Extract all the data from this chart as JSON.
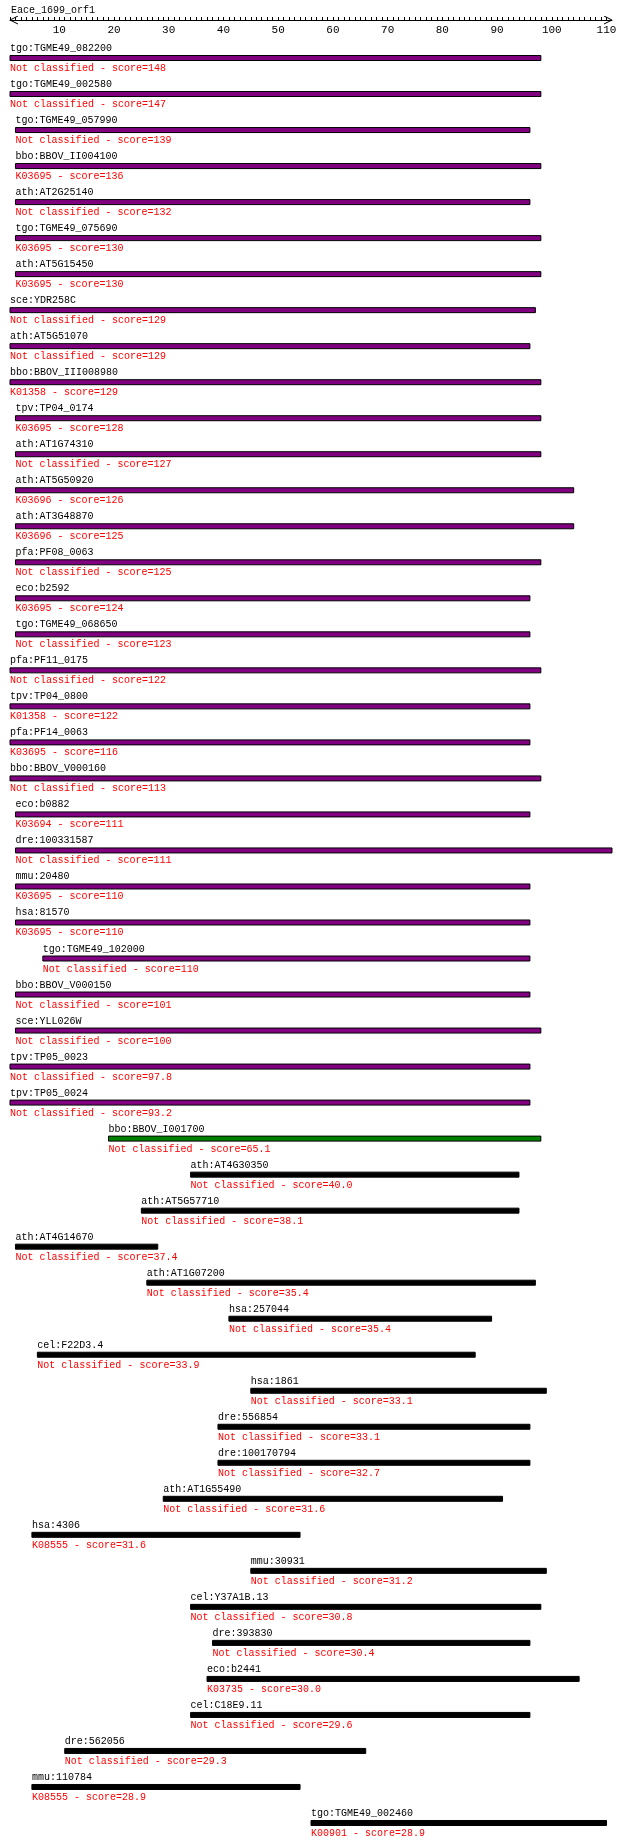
{
  "chart_data": {
    "type": "bar",
    "orientation": "horizontal",
    "title": "Eace_1699_orf1",
    "categories": [
      "tgo:TGME49_082200",
      "tgo:TGME49_002580",
      "tgo:TGME49_057990",
      "bbo:BBOV_II004100",
      "ath:AT2G25140",
      "tgo:TGME49_075690",
      "ath:AT5G15450",
      "sce:YDR258C",
      "ath:AT5G51070",
      "bbo:BBOV_III008980",
      "tpv:TP04_0174",
      "ath:AT1G74310",
      "ath:AT5G50920",
      "ath:AT3G48870",
      "pfa:PF08_0063",
      "eco:b2592",
      "tgo:TGME49_068650",
      "pfa:PF11_0175",
      "tpv:TP04_0800",
      "pfa:PF14_0063",
      "bbo:BBOV_V000160",
      "eco:b0882",
      "dre:100331587",
      "mmu:20480",
      "hsa:81570",
      "tgo:TGME49_102000",
      "bbo:BBOV_V000150",
      "sce:YLL026W",
      "tpv:TP05_0023",
      "tpv:TP05_0024",
      "bbo:BBOV_I001700",
      "ath:AT4G30350",
      "ath:AT5G57710",
      "ath:AT4G14670",
      "ath:AT1G07200",
      "hsa:257044",
      "cel:F22D3.4",
      "hsa:1861",
      "dre:556854",
      "dre:100170794",
      "ath:AT1G55490",
      "hsa:4306",
      "mmu:30931",
      "cel:Y37A1B.13",
      "dre:393830",
      "eco:b2441",
      "cel:C18E9.11",
      "dre:562056",
      "mmu:110784",
      "tgo:TGME49_002460"
    ],
    "base": [
      1,
      1,
      2,
      2,
      2,
      2,
      2,
      1,
      1,
      1,
      2,
      2,
      2,
      2,
      2,
      2,
      2,
      1,
      1,
      1,
      1,
      2,
      2,
      2,
      2,
      7,
      2,
      2,
      1,
      1,
      19,
      34,
      25,
      2,
      26,
      41,
      6,
      45,
      39,
      39,
      29,
      5,
      45,
      34,
      38,
      37,
      34,
      11,
      5,
      56
    ],
    "values": [
      97,
      97,
      94,
      96,
      94,
      96,
      96,
      96,
      95,
      97,
      96,
      96,
      102,
      102,
      96,
      94,
      94,
      97,
      95,
      95,
      97,
      94,
      109,
      94,
      94,
      89,
      94,
      96,
      95,
      95,
      79,
      60,
      69,
      26,
      71,
      48,
      80,
      54,
      57,
      57,
      62,
      49,
      54,
      64,
      58,
      68,
      62,
      55,
      49,
      54
    ],
    "colors": [
      "#800080",
      "#800080",
      "#800080",
      "#800080",
      "#800080",
      "#800080",
      "#800080",
      "#800080",
      "#800080",
      "#800080",
      "#800080",
      "#800080",
      "#800080",
      "#800080",
      "#800080",
      "#800080",
      "#800080",
      "#800080",
      "#800080",
      "#800080",
      "#800080",
      "#800080",
      "#800080",
      "#800080",
      "#800080",
      "#800080",
      "#800080",
      "#800080",
      "#800080",
      "#800080",
      "#008000",
      "#000000",
      "#000000",
      "#000000",
      "#000000",
      "#000000",
      "#000000",
      "#000000",
      "#000000",
      "#000000",
      "#000000",
      "#000000",
      "#000000",
      "#000000",
      "#000000",
      "#000000",
      "#000000",
      "#000000",
      "#000000",
      "#000000"
    ],
    "xlim": [
      1,
      111
    ],
    "xticks": [
      {
        "value": 1,
        "label": null
      },
      {
        "value": 2,
        "label": null
      },
      {
        "value": 3,
        "label": null
      },
      {
        "value": 4,
        "label": null
      },
      {
        "value": 5,
        "label": null
      },
      {
        "value": 6,
        "label": null
      },
      {
        "value": 7,
        "label": null
      },
      {
        "value": 8,
        "label": null
      },
      {
        "value": 9,
        "label": null
      },
      10,
      {
        "value": 11,
        "label": null
      },
      {
        "value": 12,
        "label": null
      },
      {
        "value": 13,
        "label": null
      },
      {
        "value": 14,
        "label": null
      },
      {
        "value": 15,
        "label": null
      },
      {
        "value": 16,
        "label": null
      },
      {
        "value": 17,
        "label": null
      },
      {
        "value": 18,
        "label": null
      },
      {
        "value": 19,
        "label": null
      },
      20,
      {
        "value": 21,
        "label": null
      },
      {
        "value": 22,
        "label": null
      },
      {
        "value": 23,
        "label": null
      },
      {
        "value": 24,
        "label": null
      },
      {
        "value": 25,
        "label": null
      },
      {
        "value": 26,
        "label": null
      },
      {
        "value": 27,
        "label": null
      },
      {
        "value": 28,
        "label": null
      },
      {
        "value": 29,
        "label": null
      },
      30,
      {
        "value": 31,
        "label": null
      },
      {
        "value": 32,
        "label": null
      },
      {
        "value": 33,
        "label": null
      },
      {
        "value": 34,
        "label": null
      },
      {
        "value": 35,
        "label": null
      },
      {
        "value": 36,
        "label": null
      },
      {
        "value": 37,
        "label": null
      },
      {
        "value": 38,
        "label": null
      },
      {
        "value": 39,
        "label": null
      },
      40,
      {
        "value": 41,
        "label": null
      },
      {
        "value": 42,
        "label": null
      },
      {
        "value": 43,
        "label": null
      },
      {
        "value": 44,
        "label": null
      },
      {
        "value": 45,
        "label": null
      },
      {
        "value": 46,
        "label": null
      },
      {
        "value": 47,
        "label": null
      },
      {
        "value": 48,
        "label": null
      },
      {
        "value": 49,
        "label": null
      },
      50,
      {
        "value": 51,
        "label": null
      },
      {
        "value": 52,
        "label": null
      },
      {
        "value": 53,
        "label": null
      },
      {
        "value": 54,
        "label": null
      },
      {
        "value": 55,
        "label": null
      },
      {
        "value": 56,
        "label": null
      },
      {
        "value": 57,
        "label": null
      },
      {
        "value": 58,
        "label": null
      },
      {
        "value": 59,
        "label": null
      },
      60,
      {
        "value": 61,
        "label": null
      },
      {
        "value": 62,
        "label": null
      },
      {
        "value": 63,
        "label": null
      },
      {
        "value": 64,
        "label": null
      },
      {
        "value": 65,
        "label": null
      },
      {
        "value": 66,
        "label": null
      },
      {
        "value": 67,
        "label": null
      },
      {
        "value": 68,
        "label": null
      },
      {
        "value": 69,
        "label": null
      },
      70,
      {
        "value": 71,
        "label": null
      },
      {
        "value": 72,
        "label": null
      },
      {
        "value": 73,
        "label": null
      },
      {
        "value": 74,
        "label": null
      },
      {
        "value": 75,
        "label": null
      },
      {
        "value": 76,
        "label": null
      },
      {
        "value": 77,
        "label": null
      },
      {
        "value": 78,
        "label": null
      },
      {
        "value": 79,
        "label": null
      },
      80,
      {
        "value": 81,
        "label": null
      },
      {
        "value": 82,
        "label": null
      },
      {
        "value": 83,
        "label": null
      },
      {
        "value": 84,
        "label": null
      },
      {
        "value": 85,
        "label": null
      },
      {
        "value": 86,
        "label": null
      },
      {
        "value": 87,
        "label": null
      },
      {
        "value": 88,
        "label": null
      },
      {
        "value": 89,
        "label": null
      },
      90,
      {
        "value": 91,
        "label": null
      },
      {
        "value": 92,
        "label": null
      },
      {
        "value": 93,
        "label": null
      },
      {
        "value": 94,
        "label": null
      },
      {
        "value": 95,
        "label": null
      },
      {
        "value": 96,
        "label": null
      },
      {
        "value": 97,
        "label": null
      },
      {
        "value": 98,
        "label": null
      },
      {
        "value": 99,
        "label": null
      },
      100,
      {
        "value": 101,
        "label": null
      },
      {
        "value": 102,
        "label": null
      },
      {
        "value": 103,
        "label": null
      },
      {
        "value": 104,
        "label": null
      },
      {
        "value": 105,
        "label": null
      },
      {
        "value": 106,
        "label": null
      },
      {
        "value": 107,
        "label": null
      },
      {
        "value": 108,
        "label": null
      },
      {
        "value": 109,
        "label": null
      },
      110
    ],
    "tick_labels": "x",
    "annotations": [
      "Not classified - score=148",
      "Not classified - score=147",
      "Not classified - score=139",
      "K03695 - score=136",
      "Not classified - score=132",
      "K03695 - score=130",
      "K03695 - score=130",
      "Not classified - score=129",
      "Not classified - score=129",
      "K01358 - score=129",
      "K03695 - score=128",
      "Not classified - score=127",
      "K03696 - score=126",
      "K03696 - score=125",
      "Not classified - score=125",
      "K03695 - score=124",
      "Not classified - score=123",
      "Not classified - score=122",
      "K01358 - score=122",
      "K03695 - score=116",
      "Not classified - score=113",
      "K03694 - score=111",
      "Not classified - score=111",
      "K03695 - score=110",
      "K03695 - score=110",
      "Not classified - score=110",
      "Not classified - score=101",
      "Not classified - score=100",
      "Not classified - score=97.8",
      "Not classified - score=93.2",
      "Not classified - score=65.1",
      "Not classified - score=40.0",
      "Not classified - score=38.1",
      "Not classified - score=37.4",
      "Not classified - score=35.4",
      "Not classified - score=35.4",
      "Not classified - score=33.9",
      "Not classified - score=33.1",
      "Not classified - score=33.1",
      "Not classified - score=32.7",
      "Not classified - score=31.6",
      "K08555 - score=31.6",
      "Not classified - score=31.2",
      "Not classified - score=30.8",
      "Not classified - score=30.4",
      "K03735 - score=30.0",
      "Not classified - score=29.6",
      "Not classified - score=29.3",
      "K08555 - score=28.9",
      "K00901 - score=28.9"
    ]
  }
}
